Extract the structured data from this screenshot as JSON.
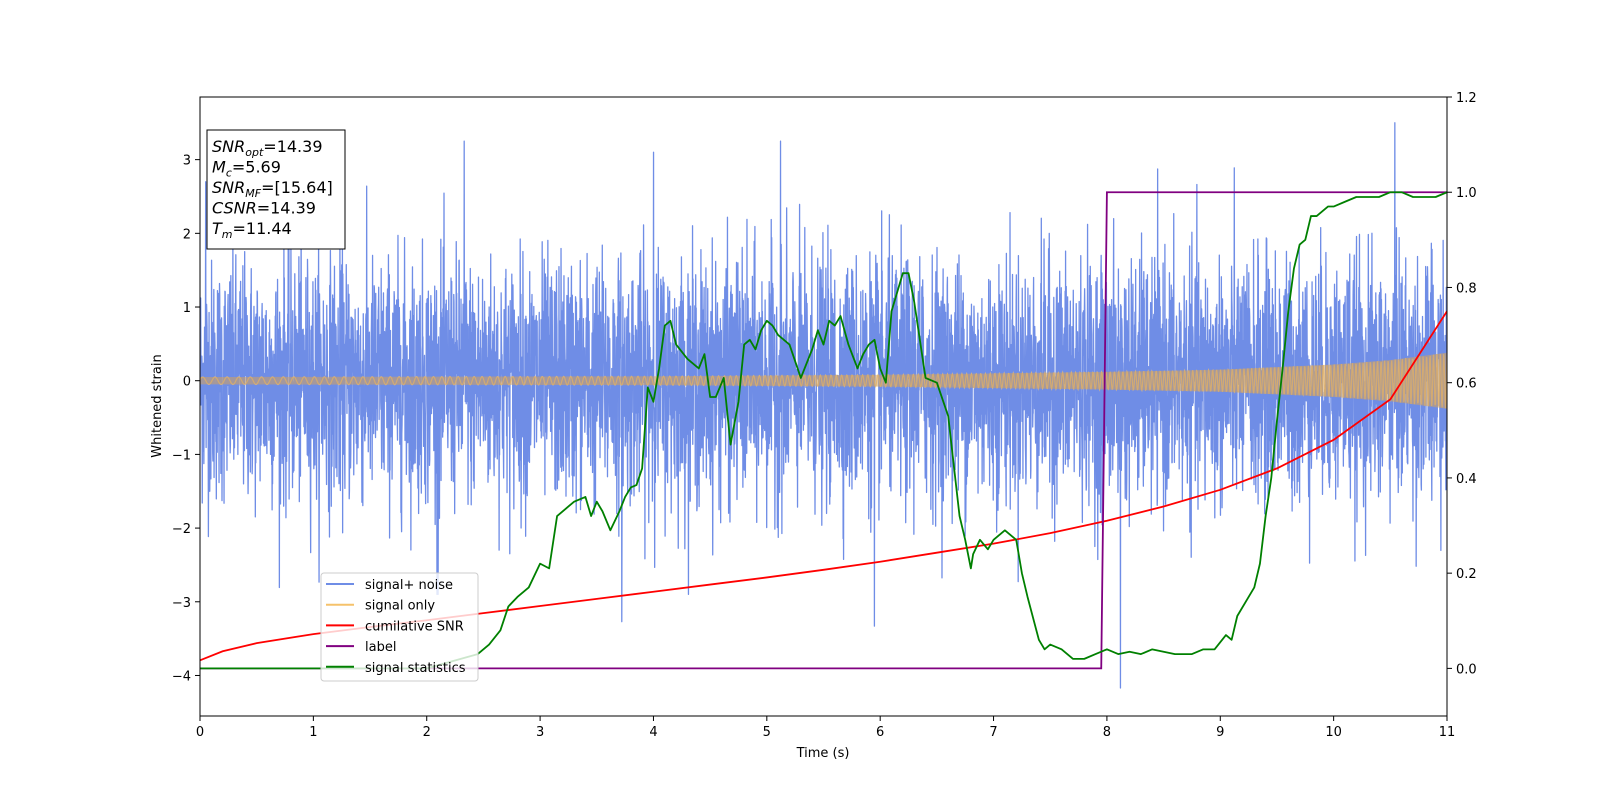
{
  "chart_data": {
    "type": "line",
    "xlabel": "Time (s)",
    "ylabel": "Whitened strain",
    "xlim": [
      0,
      11
    ],
    "ylim_left": [
      -4.55,
      3.85
    ],
    "ylim_right": [
      -0.1,
      1.2
    ],
    "x_ticks": [
      "0",
      "1",
      "2",
      "3",
      "4",
      "5",
      "6",
      "7",
      "8",
      "9",
      "10",
      "11"
    ],
    "y_left_ticks": [
      "3",
      "2",
      "1",
      "0",
      "−1",
      "−2",
      "−3",
      "−4"
    ],
    "y_right_ticks": [
      "1.2",
      "1.0",
      "0.8",
      "0.6",
      "0.4",
      "0.2",
      "0.0"
    ],
    "grid": false,
    "legend_position": "lower-left",
    "annotation": {
      "lines": [
        {
          "main": "SNR",
          "sub": "opt",
          "value": "=14.39"
        },
        {
          "main": "M",
          "sub": "c",
          "value": "=5.69"
        },
        {
          "main": "SNR",
          "sub": "MF",
          "value": "=[15.64]"
        },
        {
          "main": "CSNR",
          "sub": "",
          "value": "=14.39"
        },
        {
          "main": "T",
          "sub": "m",
          "value": "=11.44"
        }
      ]
    },
    "series": [
      {
        "name": "signal+ noise",
        "color": "#6f8de6",
        "axis": "left",
        "envelope": {
          "typical_amplitude": 1.3,
          "spikes": [
            [
              2.33,
              3.25
            ],
            [
              3.72,
              -3.27
            ],
            [
              4.0,
              3.1
            ],
            [
              5.12,
              3.25
            ],
            [
              5.95,
              -3.33
            ],
            [
              8.12,
              -4.17
            ],
            [
              10.54,
              3.5
            ],
            [
              2.1,
              -2.9
            ],
            [
              0.05,
              2.7
            ]
          ]
        }
      },
      {
        "name": "signal only",
        "color": "#f5c26b",
        "axis": "left",
        "envelope": {
          "x": [
            0,
            2,
            4,
            6,
            8,
            9,
            10,
            10.5,
            11
          ],
          "amplitude": [
            0.05,
            0.055,
            0.06,
            0.08,
            0.12,
            0.15,
            0.22,
            0.28,
            0.38
          ]
        }
      },
      {
        "name": "cumilative SNR",
        "color": "#ff0000",
        "axis": "right",
        "x": [
          0,
          0.2,
          0.5,
          1,
          1.5,
          2,
          2.5,
          3,
          3.5,
          4,
          4.5,
          5,
          5.5,
          6,
          6.5,
          7,
          7.5,
          8,
          8.5,
          9,
          9.5,
          10,
          10.5,
          11
        ],
        "y": [
          0.017,
          0.036,
          0.053,
          0.072,
          0.087,
          0.101,
          0.116,
          0.131,
          0.146,
          0.161,
          0.176,
          0.191,
          0.207,
          0.224,
          0.243,
          0.262,
          0.284,
          0.31,
          0.34,
          0.375,
          0.42,
          0.48,
          0.565,
          0.75
        ]
      },
      {
        "name": "label",
        "color": "#800080",
        "axis": "right",
        "x": [
          0,
          7.95,
          8.0,
          11
        ],
        "y": [
          0,
          0,
          1,
          1
        ]
      },
      {
        "name": "signal statistics",
        "color": "#008000",
        "axis": "right",
        "x": [
          0,
          2.0,
          2.3,
          2.45,
          2.55,
          2.65,
          2.72,
          2.8,
          2.9,
          3.0,
          3.08,
          3.15,
          3.25,
          3.3,
          3.4,
          3.45,
          3.5,
          3.55,
          3.62,
          3.7,
          3.75,
          3.8,
          3.85,
          3.9,
          3.95,
          4.0,
          4.05,
          4.1,
          4.15,
          4.2,
          4.3,
          4.4,
          4.45,
          4.5,
          4.55,
          4.62,
          4.68,
          4.75,
          4.8,
          4.85,
          4.9,
          4.95,
          5.0,
          5.05,
          5.1,
          5.2,
          5.3,
          5.4,
          5.45,
          5.5,
          5.55,
          5.6,
          5.65,
          5.72,
          5.8,
          5.85,
          5.9,
          5.95,
          6.0,
          6.05,
          6.1,
          6.15,
          6.2,
          6.25,
          6.3,
          6.4,
          6.5,
          6.6,
          6.7,
          6.75,
          6.8,
          6.82,
          6.88,
          6.95,
          7.0,
          7.1,
          7.2,
          7.25,
          7.3,
          7.4,
          7.45,
          7.5,
          7.6,
          7.7,
          7.8,
          7.9,
          8.0,
          8.1,
          8.2,
          8.3,
          8.4,
          8.5,
          8.6,
          8.75,
          8.85,
          8.95,
          9.05,
          9.1,
          9.15,
          9.25,
          9.3,
          9.35,
          9.4,
          9.45,
          9.5,
          9.55,
          9.6,
          9.65,
          9.7,
          9.75,
          9.8,
          9.85,
          9.9,
          9.95,
          10.0,
          10.1,
          10.2,
          10.3,
          10.4,
          10.5,
          10.6,
          10.7,
          10.8,
          10.9,
          11.0
        ],
        "y": [
          0.0,
          0.0,
          0.02,
          0.03,
          0.05,
          0.08,
          0.13,
          0.15,
          0.17,
          0.22,
          0.21,
          0.32,
          0.34,
          0.35,
          0.36,
          0.32,
          0.35,
          0.33,
          0.29,
          0.33,
          0.36,
          0.38,
          0.385,
          0.42,
          0.59,
          0.56,
          0.63,
          0.72,
          0.73,
          0.68,
          0.65,
          0.63,
          0.66,
          0.57,
          0.57,
          0.61,
          0.47,
          0.56,
          0.68,
          0.69,
          0.67,
          0.71,
          0.73,
          0.72,
          0.7,
          0.68,
          0.61,
          0.67,
          0.71,
          0.68,
          0.73,
          0.72,
          0.74,
          0.68,
          0.63,
          0.66,
          0.68,
          0.69,
          0.63,
          0.6,
          0.75,
          0.79,
          0.83,
          0.83,
          0.77,
          0.61,
          0.6,
          0.53,
          0.32,
          0.27,
          0.21,
          0.24,
          0.27,
          0.25,
          0.27,
          0.29,
          0.27,
          0.2,
          0.15,
          0.06,
          0.04,
          0.05,
          0.04,
          0.02,
          0.02,
          0.03,
          0.04,
          0.03,
          0.035,
          0.03,
          0.04,
          0.035,
          0.03,
          0.03,
          0.04,
          0.04,
          0.07,
          0.06,
          0.11,
          0.15,
          0.17,
          0.22,
          0.32,
          0.4,
          0.52,
          0.63,
          0.75,
          0.84,
          0.89,
          0.9,
          0.95,
          0.95,
          0.96,
          0.97,
          0.97,
          0.98,
          0.99,
          0.99,
          0.99,
          1.0,
          1.0,
          0.99,
          0.99,
          0.99,
          1.0
        ]
      }
    ]
  }
}
